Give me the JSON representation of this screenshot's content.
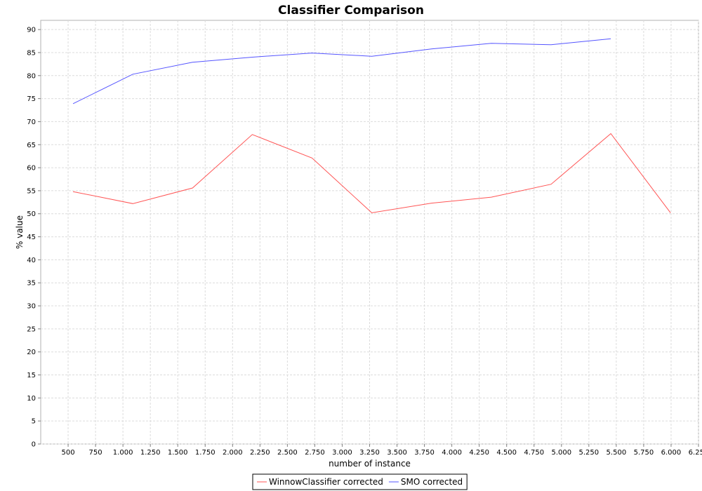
{
  "chart_data": {
    "type": "line",
    "title": "Classifier Comparison",
    "xlabel": "number of instance",
    "ylabel": "% value",
    "xlim": [
      250,
      6250
    ],
    "ylim": [
      0,
      92
    ],
    "x_ticks": [
      "500",
      "750",
      "1.000",
      "1.250",
      "1.500",
      "1.750",
      "2.000",
      "2.250",
      "2.500",
      "2.750",
      "3.000",
      "3.250",
      "3.500",
      "3.750",
      "4.000",
      "4.250",
      "4.500",
      "4.750",
      "5.000",
      "5.250",
      "5.500",
      "5.750",
      "6.000",
      "6.250"
    ],
    "x_tick_values": [
      500,
      750,
      1000,
      1250,
      1500,
      1750,
      2000,
      2250,
      2500,
      2750,
      3000,
      3250,
      3500,
      3750,
      4000,
      4250,
      4500,
      4750,
      5000,
      5250,
      5500,
      5750,
      6000,
      6250
    ],
    "y_ticks": [
      0,
      5,
      10,
      15,
      20,
      25,
      30,
      35,
      40,
      45,
      50,
      55,
      60,
      65,
      70,
      75,
      80,
      85,
      90
    ],
    "grid": true,
    "legend_position": "bottom",
    "series": [
      {
        "name": "WinnowClassifier corrected",
        "color": "#ff5555",
        "x": [
          545,
          1090,
          1635,
          2180,
          2725,
          3270,
          3815,
          4360,
          4905,
          5450,
          5995
        ],
        "y": [
          54.8,
          52.2,
          55.6,
          67.2,
          62.1,
          50.2,
          52.3,
          53.6,
          56.4,
          67.4,
          50.2
        ]
      },
      {
        "name": "SMO corrected",
        "color": "#5555ff",
        "x": [
          545,
          1090,
          1635,
          2180,
          2725,
          3270,
          3815,
          4360,
          4905,
          5450
        ],
        "y": [
          73.9,
          80.3,
          82.9,
          84.0,
          84.9,
          84.2,
          85.8,
          87.0,
          86.7,
          88.0
        ]
      }
    ]
  }
}
